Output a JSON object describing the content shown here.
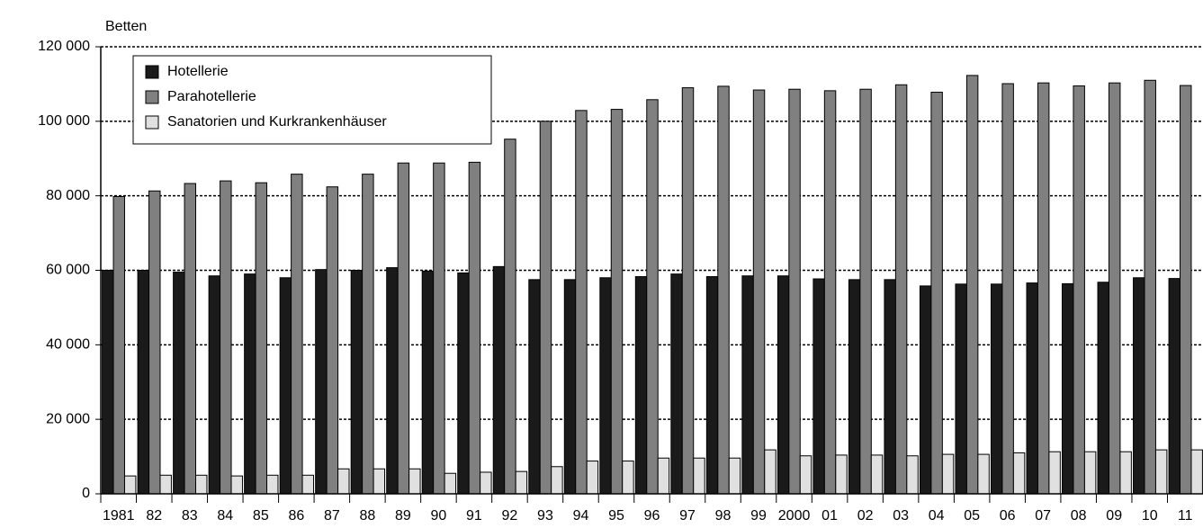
{
  "chart_data": {
    "type": "bar",
    "y_axis_label": "Betten",
    "categories": [
      "1981",
      "82",
      "83",
      "84",
      "85",
      "86",
      "87",
      "88",
      "89",
      "90",
      "91",
      "92",
      "93",
      "94",
      "95",
      "96",
      "97",
      "98",
      "99",
      "2000",
      "01",
      "02",
      "03",
      "04",
      "05",
      "06",
      "07",
      "08",
      "09",
      "10",
      "11"
    ],
    "series": [
      {
        "name": "Hotellerie",
        "color": "#1a1a1a",
        "values": [
          60000,
          60000,
          59500,
          58500,
          59000,
          58000,
          60200,
          60000,
          60700,
          59800,
          59300,
          61000,
          57500,
          57500,
          58000,
          58300,
          59000,
          58300,
          58500,
          58500,
          57700,
          57500,
          57500,
          55800,
          56300,
          56300,
          56600,
          56400,
          56800,
          58000,
          57800
        ]
      },
      {
        "name": "Parahotellerie",
        "color": "#808080",
        "values": [
          79800,
          81300,
          83300,
          84000,
          83500,
          85800,
          82400,
          85800,
          88800,
          88800,
          89000,
          95200,
          100000,
          102900,
          103200,
          105800,
          109000,
          109400,
          108400,
          108600,
          108200,
          108600,
          109800,
          107800,
          112300,
          110100,
          110300,
          109500,
          110300,
          111000,
          109600
        ]
      },
      {
        "name": "Sanatorien und Kurkrankenhäuser",
        "color": "#e0e0e0",
        "values": [
          4800,
          5000,
          5000,
          4800,
          5000,
          5000,
          6700,
          6700,
          6700,
          5500,
          5800,
          6000,
          7300,
          8800,
          8800,
          9600,
          9600,
          9600,
          11800,
          10200,
          10400,
          10400,
          10200,
          10600,
          10600,
          11000,
          11300,
          11300,
          11300,
          11800,
          11800
        ]
      }
    ],
    "ylim": [
      0,
      120000
    ],
    "yticks": [
      0,
      {
        "value": 20000,
        "label": "20 000"
      },
      {
        "value": 40000,
        "label": "40 000"
      },
      {
        "value": 60000,
        "label": "60 000"
      },
      {
        "value": 80000,
        "label": "80 000"
      },
      {
        "value": 100000,
        "label": "100 000"
      },
      {
        "value": 120000,
        "label": "120 000"
      }
    ],
    "grid": true,
    "legend": "top-left"
  }
}
